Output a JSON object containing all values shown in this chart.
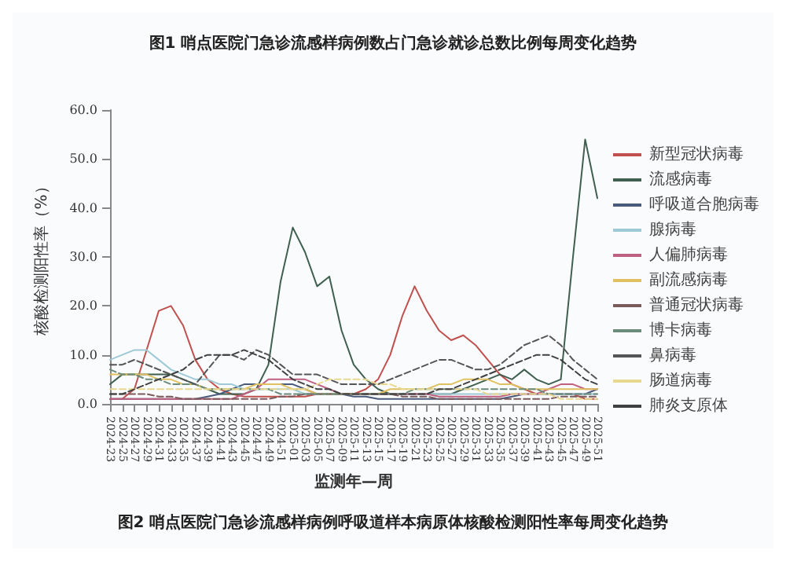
{
  "chart_data": {
    "type": "line",
    "title": "图1 哨点医院门急诊流感样病例数占门急诊就诊总数比例每周变化趋势",
    "annotations": [
      "图2 哨点医院门急诊流感样病例呼吸道样本病原体核酸检测阳性率每周变化趋势"
    ],
    "xlabel": "监测年—周",
    "ylabel": "核酸检测阳性率（%）",
    "categories": [
      "2024-23",
      "2024-25",
      "2024-27",
      "2024-29",
      "2024-31",
      "2024-33",
      "2024-35",
      "2024-37",
      "2024-39",
      "2024-41",
      "2024-43",
      "2024-45",
      "2024-47",
      "2024-49",
      "2024-51",
      "2025-01",
      "2025-03",
      "2025-05",
      "2025-07",
      "2025-09",
      "2025-11",
      "2025-13",
      "2025-15",
      "2025-17",
      "2025-19",
      "2025-21",
      "2025-23",
      "2025-25",
      "2025-27",
      "2025-29",
      "2025-31",
      "2025-33",
      "2025-35",
      "2025-37",
      "2025-39",
      "2025-41",
      "2025-43",
      "2025-45",
      "2025-47",
      "2025-49",
      "2025-51"
    ],
    "ylim": [
      0,
      60
    ],
    "yticks": [
      {
        "value": 0,
        "label": "0.0"
      },
      {
        "value": 10,
        "label": "10.0"
      },
      {
        "value": 20,
        "label": "20.0"
      },
      {
        "value": 30,
        "label": "30.0"
      },
      {
        "value": 40,
        "label": "40.0"
      },
      {
        "value": 50,
        "label": "50.0"
      },
      {
        "value": 60,
        "label": "60.0"
      }
    ],
    "grid": false,
    "legend": "right",
    "marker": "none",
    "series": [
      {
        "name": "新型冠状病毒",
        "color": "#c0504d",
        "line_style": "solid",
        "values": [
          1,
          1,
          3,
          11,
          19,
          20,
          16,
          9,
          5,
          3,
          2,
          1.5,
          1.5,
          1.5,
          1.5,
          1.5,
          1.5,
          2,
          2,
          2,
          2,
          3,
          5,
          10,
          18,
          24,
          19,
          15,
          13,
          14,
          12,
          9,
          6,
          4,
          3,
          2,
          2,
          2,
          2,
          1,
          1
        ]
      },
      {
        "name": "流感病毒",
        "color": "#3f5f4f",
        "line_style": "solid",
        "values": [
          4,
          6,
          6,
          6,
          6,
          6,
          5,
          4,
          3,
          2,
          2,
          2,
          3,
          8,
          25,
          36,
          31,
          24,
          26,
          15,
          8,
          5,
          3,
          2,
          2,
          2,
          2,
          2,
          2,
          3,
          4,
          5,
          6,
          5,
          7,
          5,
          4,
          5,
          30,
          54,
          42
        ]
      },
      {
        "name": "呼吸道合胞病毒",
        "color": "#4a5a7a",
        "line_style": "solid",
        "values": [
          1,
          1,
          1,
          1,
          1,
          1,
          1,
          1,
          1.5,
          2,
          3,
          4,
          4,
          4,
          4,
          4,
          3,
          2,
          2,
          2,
          1.5,
          1.5,
          1,
          1,
          1,
          1,
          1,
          1,
          1,
          1,
          1,
          1,
          1,
          1.5,
          2,
          2,
          2,
          2,
          2,
          2,
          3
        ]
      },
      {
        "name": "腺病毒",
        "color": "#9ec9d6",
        "line_style": "solid",
        "values": [
          9,
          10,
          11,
          11,
          9,
          7,
          6,
          5,
          5,
          4,
          4,
          3,
          3,
          3,
          3,
          3,
          2,
          2,
          2,
          2,
          2,
          2,
          2,
          2,
          2,
          2,
          2,
          2,
          2,
          2,
          2,
          2,
          2,
          2,
          2,
          2,
          2,
          2,
          2,
          2,
          2
        ]
      },
      {
        "name": "人偏肺病毒",
        "color": "#c06080",
        "line_style": "solid",
        "values": [
          1,
          1,
          1,
          1,
          1,
          1,
          1,
          1,
          1,
          1,
          1,
          2,
          3,
          5,
          5,
          5,
          5,
          4,
          3,
          2,
          2,
          2,
          2,
          2,
          2,
          2,
          2,
          1.5,
          1.5,
          1.5,
          1.5,
          1.5,
          1.5,
          2,
          2,
          2,
          3,
          4,
          4,
          3,
          3
        ]
      },
      {
        "name": "副流感病毒",
        "color": "#e0c060",
        "line_style": "solid",
        "values": [
          6,
          6,
          6,
          6,
          5,
          5,
          4,
          4,
          3,
          3,
          3,
          3,
          4,
          4,
          4,
          3,
          3,
          2,
          2,
          2,
          2,
          2,
          2,
          3,
          3,
          3,
          3,
          4,
          4,
          5,
          5,
          5,
          4,
          4,
          3,
          3,
          3,
          3,
          3,
          3,
          3
        ]
      },
      {
        "name": "普通冠状病毒",
        "color": "#7a5a5a",
        "line_style": "dashed",
        "values": [
          2,
          2,
          2,
          2,
          1.5,
          1.5,
          1,
          1,
          1,
          1,
          1,
          1,
          1,
          1,
          1.5,
          1.5,
          2,
          2,
          2,
          2,
          2,
          2,
          2,
          2,
          1.5,
          1.5,
          1.5,
          1,
          1,
          1,
          1,
          1,
          1,
          1,
          1,
          1,
          1,
          1.5,
          1.5,
          1.5,
          1.5
        ]
      },
      {
        "name": "博卡病毒",
        "color": "#6a8a7a",
        "line_style": "dashed",
        "values": [
          7,
          6,
          6,
          5,
          5,
          4,
          4,
          4,
          3,
          3,
          3,
          3,
          3,
          3,
          2,
          2,
          2,
          2,
          2,
          2,
          2,
          2,
          2,
          2,
          2,
          3,
          3,
          3,
          3,
          3,
          3,
          3,
          3,
          3,
          3,
          3,
          2,
          2,
          2,
          2,
          2
        ]
      },
      {
        "name": "鼻病毒",
        "color": "#555555",
        "line_style": "dashed",
        "values": [
          8,
          8,
          9,
          8,
          7,
          6,
          5,
          4,
          7,
          10,
          10,
          9,
          11,
          10,
          8,
          6,
          6,
          6,
          5,
          4,
          4,
          4,
          4,
          5,
          6,
          7,
          8,
          9,
          9,
          8,
          7,
          7,
          8,
          10,
          12,
          13,
          14,
          12,
          9,
          7,
          5
        ]
      },
      {
        "name": "肠道病毒",
        "color": "#e8d890",
        "line_style": "dashed",
        "values": [
          3,
          3,
          3,
          3,
          3,
          3,
          3,
          3,
          3,
          3,
          3,
          3,
          3,
          3,
          3,
          3,
          3,
          4,
          5,
          5,
          5,
          5,
          4,
          4,
          3,
          3,
          3,
          3,
          3,
          3,
          3,
          2,
          2,
          2,
          2,
          2,
          2,
          1,
          1,
          1,
          1
        ]
      },
      {
        "name": "肺炎支原体",
        "color": "#404040",
        "line_style": "dashed",
        "values": [
          2,
          2,
          3,
          4,
          5,
          6,
          7,
          9,
          10,
          10,
          10,
          11,
          10,
          9,
          7,
          5,
          4,
          3,
          3,
          2,
          2,
          2,
          2,
          2,
          2,
          2,
          2,
          3,
          3,
          4,
          5,
          6,
          7,
          8,
          9,
          10,
          10,
          9,
          7,
          5,
          4
        ]
      }
    ]
  }
}
